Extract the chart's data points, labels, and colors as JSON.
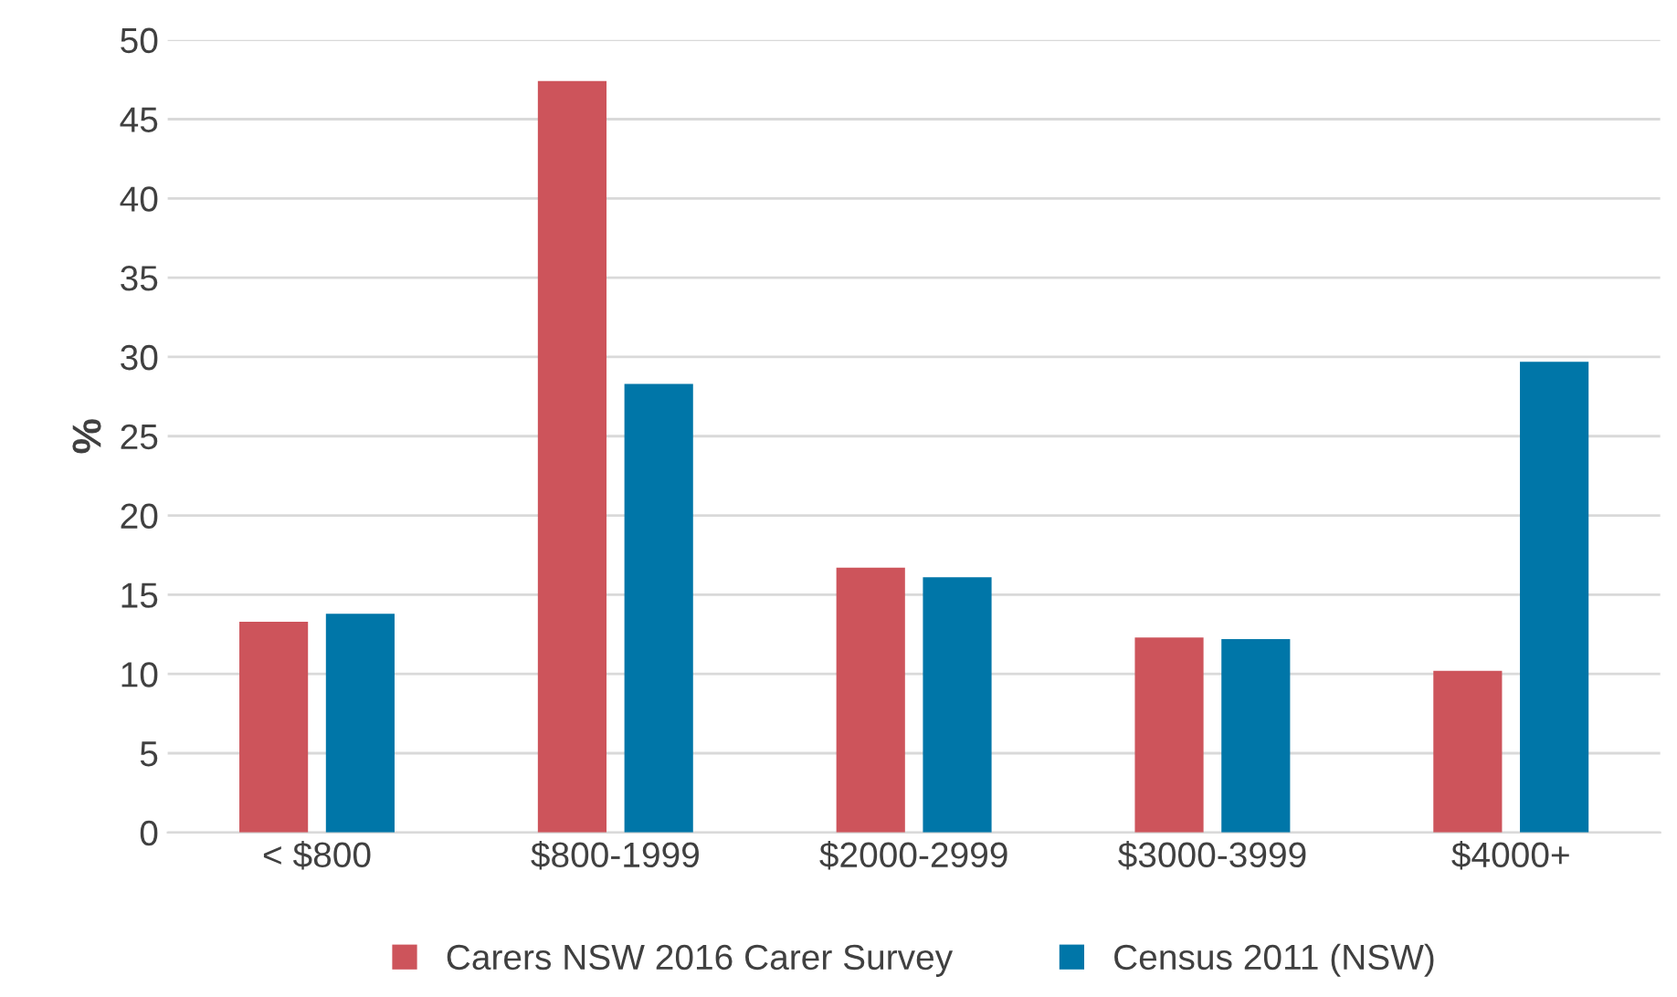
{
  "chart_data": {
    "type": "bar",
    "ylabel": "%",
    "categories": [
      "< $800",
      "$800-1999",
      "$2000-2999",
      "$3000-3999",
      "$4000+"
    ],
    "series": [
      {
        "name": "Carers NSW 2016 Carer Survey",
        "color": "#cd545b",
        "values": [
          13.3,
          47.4,
          16.7,
          12.3,
          10.2
        ]
      },
      {
        "name": "Census 2011 (NSW)",
        "color": "#0076a8",
        "values": [
          13.8,
          28.3,
          16.1,
          12.2,
          29.7
        ]
      }
    ],
    "ylim": [
      0,
      50
    ],
    "yticks": [
      0,
      5,
      10,
      15,
      20,
      25,
      30,
      35,
      40,
      45,
      50
    ],
    "grid": "y",
    "legend": "bottom"
  }
}
